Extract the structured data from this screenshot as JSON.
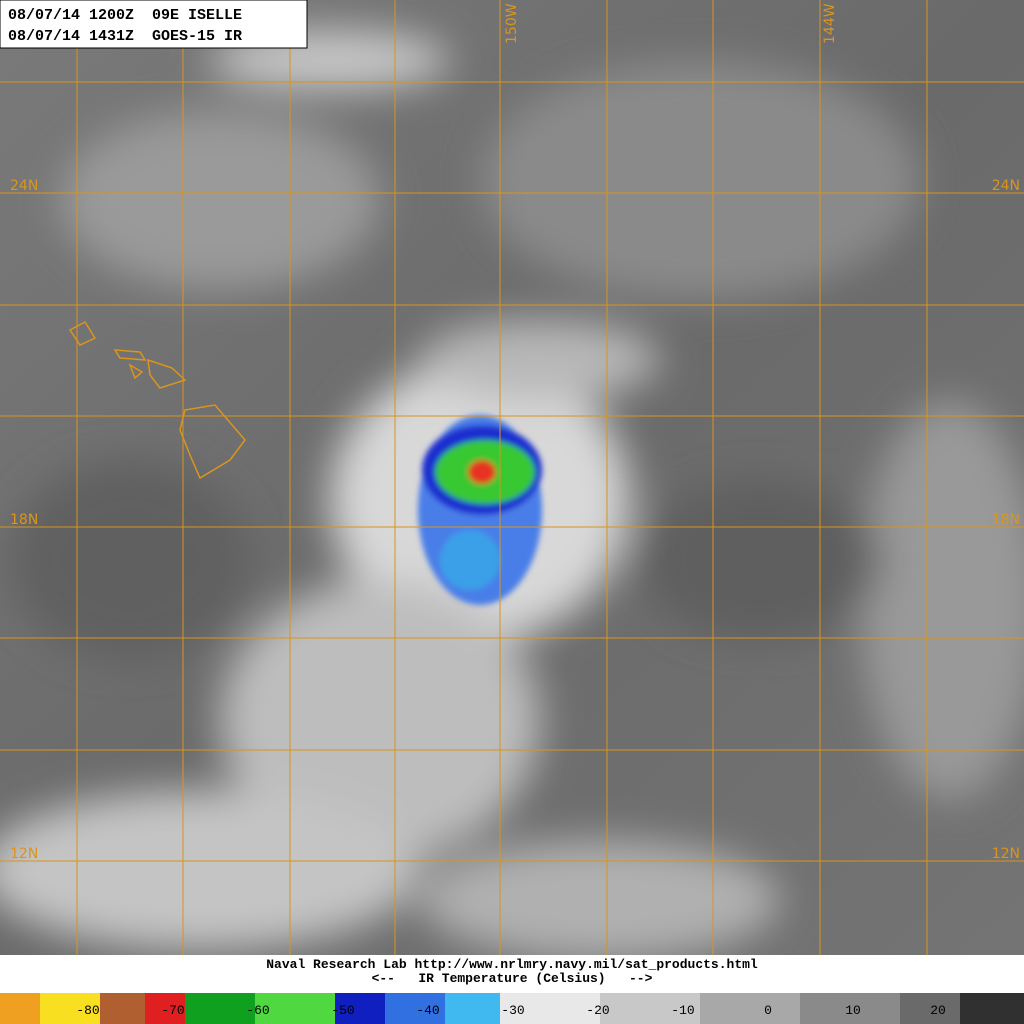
{
  "header": {
    "lines": [
      "08/07/14 1200Z  09E ISELLE",
      "08/07/14 1431Z  GOES-15 IR"
    ]
  },
  "grid_labels": {
    "longitudes": [
      "150W",
      "144W"
    ],
    "latitudes": [
      "24N",
      "18N",
      "12N"
    ]
  },
  "footer": {
    "credit": "Naval Research Lab http://www.nrlmry.navy.mil/sat_products.html",
    "scale_title": "<--   IR Temperature (Celsius)   -->"
  },
  "color_scale": {
    "labels": [
      -80,
      -70,
      -60,
      -50,
      -40,
      -30,
      -20,
      -10,
      0,
      10,
      20
    ]
  }
}
